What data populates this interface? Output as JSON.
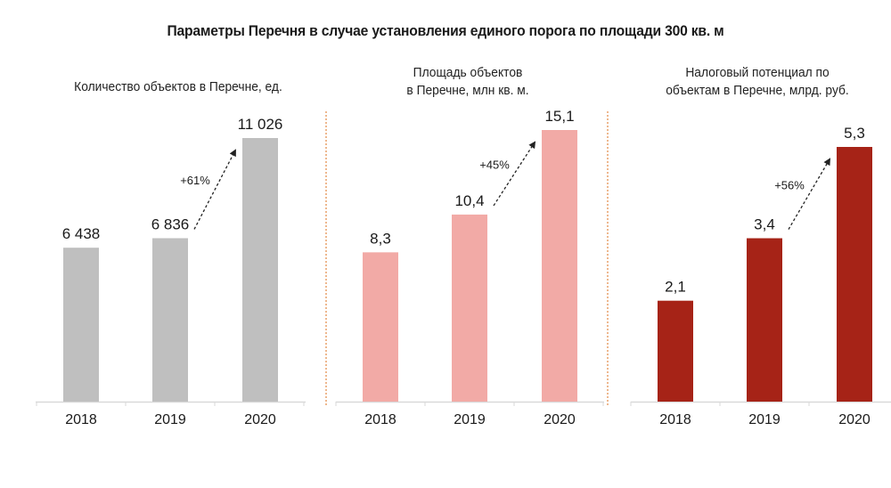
{
  "title": "Параметры Перечня в случае установления единого порога по площади 300 кв. м",
  "chart_data": [
    {
      "type": "bar",
      "title": "Количество объектов в Перечне, ед.",
      "categories": [
        "2018",
        "2019",
        "2020"
      ],
      "values": [
        6438,
        6836,
        11026
      ],
      "value_labels": [
        "6 438",
        "6 836",
        "11 026"
      ],
      "annotation": {
        "text": "+61%",
        "from": "2019",
        "to": "2020"
      },
      "color": "#bfbfbf",
      "grid": false,
      "legend": "none"
    },
    {
      "type": "bar",
      "title": "Площадь объектов\nв Перечне, млн кв. м.",
      "title_lines": [
        "Площадь объектов",
        "в Перечне, млн кв. м."
      ],
      "categories": [
        "2018",
        "2019",
        "2020"
      ],
      "values": [
        8.3,
        10.4,
        15.1
      ],
      "value_labels": [
        "8,3",
        "10,4",
        "15,1"
      ],
      "annotation": {
        "text": "+45%",
        "from": "2019",
        "to": "2020"
      },
      "color": "#f2aaa6",
      "grid": false,
      "legend": "none"
    },
    {
      "type": "bar",
      "title": "Налоговый потенциал по\nобъектам в Перечне, млрд. руб.",
      "title_lines": [
        "Налоговый потенциал по",
        "объектам в Перечне, млрд. руб."
      ],
      "categories": [
        "2018",
        "2019",
        "2020"
      ],
      "values": [
        2.1,
        3.4,
        5.3
      ],
      "value_labels": [
        "2,1",
        "3,4",
        "5,3"
      ],
      "annotation": {
        "text": "+56%",
        "from": "2019",
        "to": "2020"
      },
      "color": "#a62317",
      "grid": false,
      "legend": "none"
    }
  ],
  "colors": {
    "divider": "#e8a06a",
    "axis": "#d9d9d9",
    "arrow": "#222222"
  }
}
